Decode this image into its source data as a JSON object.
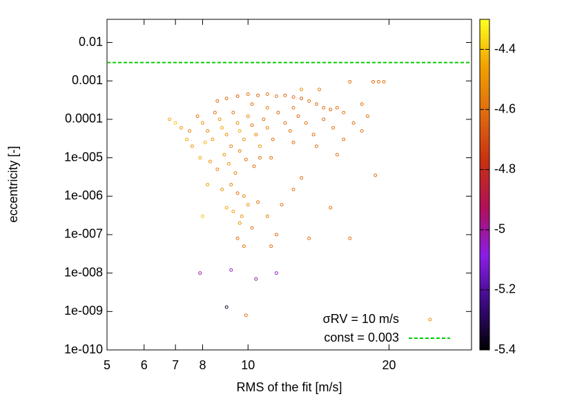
{
  "chart_data": {
    "type": "scatter",
    "xlabel": "RMS of the fit [m/s]",
    "ylabel": "eccentricity [-]",
    "xlog": true,
    "ylog": true,
    "xlim": [
      5,
      30
    ],
    "ylim": [
      1e-10,
      0.04
    ],
    "xticks": [
      5,
      6,
      7,
      8,
      10,
      20
    ],
    "yticks": [
      {
        "value": 1e-10,
        "label": "1e-010"
      },
      {
        "value": 1e-09,
        "label": "1e-009"
      },
      {
        "value": 1e-08,
        "label": "1e-008"
      },
      {
        "value": 1e-07,
        "label": "1e-007"
      },
      {
        "value": 1e-06,
        "label": "1e-006"
      },
      {
        "value": 1e-05,
        "label": "1e-005"
      },
      0.0001,
      0.001,
      0.01
    ],
    "clim": [
      -5.4,
      -4.3
    ],
    "cticks": [
      -4.4,
      -4.6,
      -4.8,
      -5,
      -5.2,
      -5.4
    ],
    "colormap": [
      "#000000",
      "#3b0a80",
      "#8a1ee8",
      "#b0105a",
      "#c83010",
      "#e06a10",
      "#f0a000",
      "#ffff20"
    ],
    "legend": "bottom-right",
    "series": [
      {
        "name": "σRV = 10 m/s",
        "color": "#f08c00",
        "x": [
          8.6,
          9.0,
          9.5,
          10,
          10.5,
          11,
          11.5,
          12,
          12.5,
          13,
          13.5,
          14,
          14.5,
          15,
          15.5,
          16,
          16.5,
          18.5,
          19,
          19.5,
          17.5,
          18,
          14.2,
          13,
          12.5,
          11,
          10.2,
          6.8,
          7.0,
          7.2,
          7.5,
          7.8,
          8,
          8.2,
          8.4,
          8.5,
          8.7,
          8.8,
          9,
          9.2,
          9.3,
          9.5,
          9.6,
          9.8,
          10,
          10.2,
          10.4,
          10.6,
          10.8,
          11,
          11.3,
          11.6,
          12,
          12.3,
          12.8,
          13.3,
          13.8,
          14.5,
          15.2,
          16,
          16.8,
          17.5,
          15.5,
          14,
          12.5,
          7.6,
          7.9,
          8.3,
          8.6,
          8.9,
          9.1,
          9.4,
          9.6,
          9.9,
          10.3,
          10.6,
          11.2,
          7.4,
          8.1,
          18.7,
          8.2,
          8.8,
          9.2,
          9.5,
          9.8,
          10.0,
          9.3,
          9.7,
          10.5,
          11,
          8,
          9,
          10.2,
          11.5,
          11.2,
          9.6,
          9.8,
          9.5,
          11.8,
          13,
          12.5,
          13.5,
          15,
          16.5,
          7.9,
          9.2,
          10.4,
          11.5,
          9.0,
          9.9
        ],
        "values": [
          0.0003,
          0.00035,
          0.0004,
          0.00045,
          0.00042,
          0.00045,
          0.0004,
          0.00042,
          0.00038,
          0.00035,
          0.0003,
          0.00025,
          0.0002,
          0.00018,
          0.0002,
          0.00015,
          0.00095,
          0.00095,
          0.00095,
          0.00095,
          0.00025,
          0.00012,
          0.0006,
          0.0006,
          0.0002,
          0.0002,
          0.00025,
          0.0001,
          8e-05,
          6e-05,
          5e-05,
          0.00012,
          8e-05,
          5e-05,
          3e-05,
          0.00015,
          0.0001,
          6e-05,
          4e-05,
          2e-05,
          0.00015,
          8e-05,
          5e-05,
          3e-05,
          0.00012,
          7e-05,
          4e-05,
          2e-05,
          0.0001,
          6e-05,
          3e-05,
          0.00015,
          8e-05,
          5e-05,
          0.00012,
          8e-05,
          4e-05,
          0.0001,
          6e-05,
          3e-05,
          8e-05,
          5e-05,
          1.2e-05,
          2e-05,
          2.5e-05,
          2e-05,
          1e-05,
          8e-06,
          5e-06,
          1.2e-05,
          7e-06,
          4e-06,
          1.5e-05,
          9e-06,
          6e-06,
          1e-05,
          1e-05,
          3e-05,
          2.5e-05,
          3.5e-06,
          2e-06,
          1.5e-06,
          2e-06,
          1.2e-06,
          1e-06,
          6e-07,
          4e-07,
          3e-07,
          7e-07,
          3e-07,
          3e-07,
          5e-07,
          1.5e-07,
          1e-07,
          5e-08,
          2e-07,
          5e-08,
          8e-08,
          6e-07,
          3e-06,
          1.5e-06,
          8e-08,
          5e-07,
          8e-08,
          1e-08,
          1.2e-08,
          7e-09,
          1e-08,
          1.3e-09,
          8e-10
        ],
        "c": [
          -4.6,
          -4.62,
          -4.65,
          -4.6,
          -4.62,
          -4.58,
          -4.6,
          -4.62,
          -4.6,
          -4.65,
          -4.6,
          -4.62,
          -4.6,
          -4.62,
          -4.6,
          -4.58,
          -4.6,
          -4.62,
          -4.6,
          -4.6,
          -4.6,
          -4.6,
          -4.55,
          -4.5,
          -4.6,
          -4.55,
          -4.6,
          -4.45,
          -4.4,
          -4.5,
          -4.55,
          -4.6,
          -4.5,
          -4.55,
          -4.5,
          -4.6,
          -4.5,
          -4.45,
          -4.5,
          -4.55,
          -4.6,
          -4.5,
          -4.45,
          -4.5,
          -4.55,
          -4.6,
          -4.55,
          -4.5,
          -4.6,
          -4.55,
          -4.6,
          -4.62,
          -4.6,
          -4.6,
          -4.62,
          -4.6,
          -4.6,
          -4.62,
          -4.6,
          -4.6,
          -4.6,
          -4.6,
          -4.6,
          -4.6,
          -4.6,
          -4.5,
          -4.45,
          -4.5,
          -4.55,
          -4.5,
          -4.5,
          -4.55,
          -4.55,
          -4.6,
          -4.6,
          -4.6,
          -4.6,
          -4.45,
          -4.42,
          -4.6,
          -4.45,
          -4.5,
          -4.55,
          -4.6,
          -4.55,
          -4.5,
          -4.45,
          -4.5,
          -4.6,
          -4.55,
          -4.4,
          -4.45,
          -4.6,
          -4.62,
          -4.62,
          -4.5,
          -4.6,
          -4.6,
          -4.6,
          -4.6,
          -4.6,
          -4.6,
          -4.6,
          -4.6,
          -5.0,
          -5.05,
          -5.0,
          -5.05,
          -5.35,
          -4.6
        ]
      },
      {
        "name": "const = 0.003",
        "type": "hline",
        "value": 0.003,
        "color": "#00cc00"
      }
    ]
  }
}
